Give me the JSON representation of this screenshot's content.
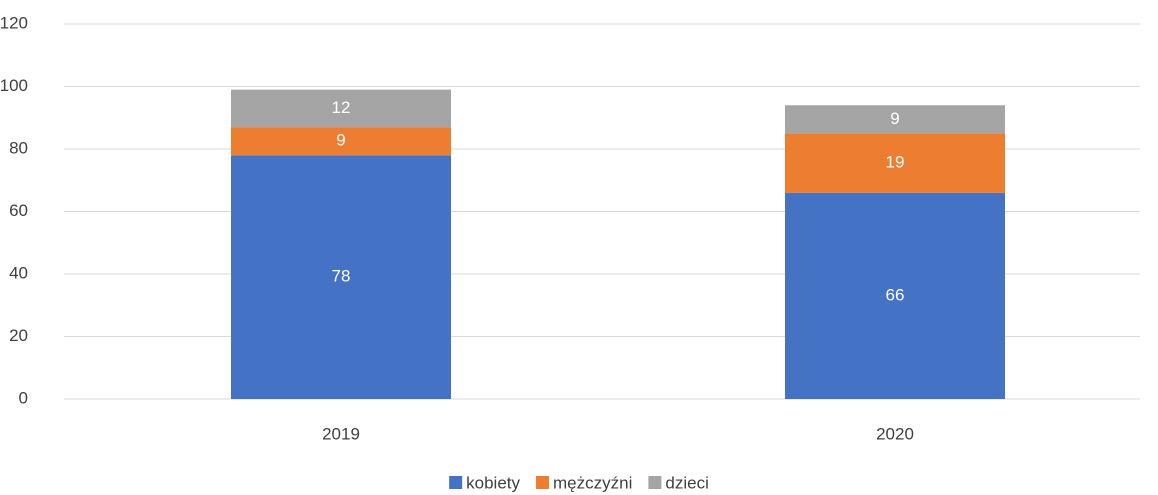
{
  "chart_data": {
    "type": "stacked_bar",
    "categories": [
      "2019",
      "2020"
    ],
    "series": [
      {
        "name": "kobiety",
        "color": "#4472c4",
        "values": [
          78,
          66
        ]
      },
      {
        "name": "mężczyźni",
        "color": "#ed7d31",
        "values": [
          9,
          19
        ]
      },
      {
        "name": "dzieci",
        "color": "#a5a5a5",
        "values": [
          12,
          9
        ]
      }
    ],
    "ylim": [
      0,
      120
    ],
    "yticks": [
      0,
      20,
      40,
      60,
      80,
      100,
      120
    ],
    "grid": true,
    "legend": "bottom"
  }
}
